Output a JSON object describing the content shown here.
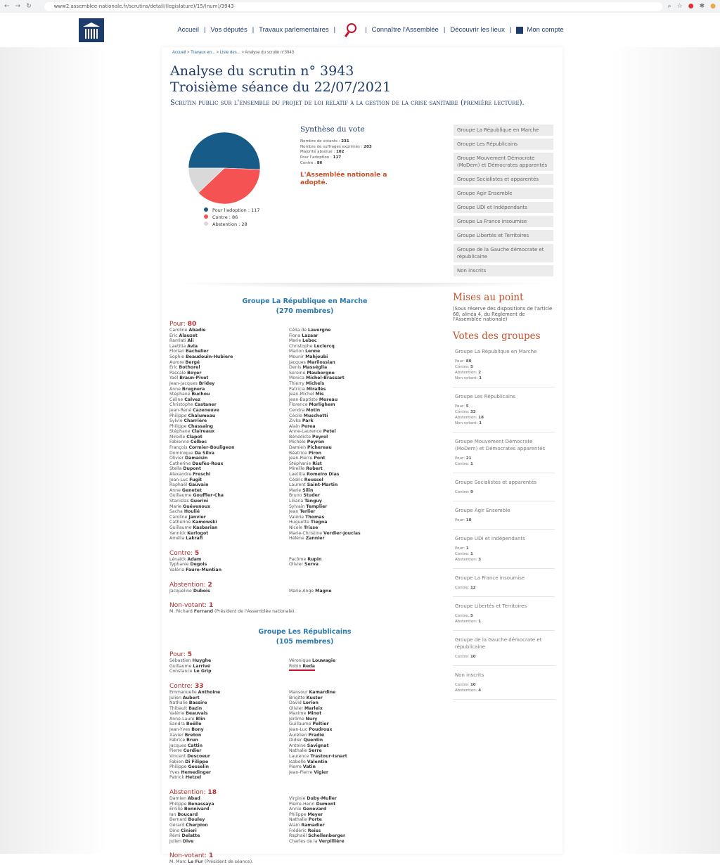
{
  "browser": {
    "url": "www2.assemblee-nationale.fr/scrutins/detail/(legislature)/15/(num)/3943"
  },
  "nav": {
    "items": [
      "Accueil",
      "Vos députés",
      "Travaux parlementaires",
      "Connaître l'Assemblée",
      "Découvrir les lieux",
      "Mon compte"
    ]
  },
  "breadcrumb": [
    "Accueil",
    "Travaux en...",
    "Liste des...",
    "Analyse du scrutin n°3943"
  ],
  "title": {
    "line1": "Analyse du scrutin n° 3943",
    "line2": "Troisième séance du 22/07/2021",
    "subtitle": "Scrutin public sur l'ensemble du projet de loi relatif à la gestion de la crise sanitaire (première lecture)."
  },
  "chart_data": {
    "type": "pie",
    "categories": [
      "Pour l'adoption",
      "Contre",
      "Abstention"
    ],
    "values": [
      117,
      86,
      28
    ],
    "colors": [
      "#175c89",
      "#f55353",
      "#d9d9d9"
    ],
    "legend": [
      "Pour l'adoption : 117",
      "Contre : 86",
      "Abstention : 28"
    ],
    "legend_position": "bottom"
  },
  "synthese": {
    "title": "Synthèse du vote",
    "rows": [
      [
        "Nombre de votants : ",
        "231"
      ],
      [
        "Nombre de suffrages exprimés : ",
        "203"
      ],
      [
        "Majorité absolue : ",
        "102"
      ],
      [
        "Pour l'adoption : ",
        "117"
      ],
      [
        "Contre : ",
        "86"
      ]
    ],
    "result": "L'Assemblée nationale a adopté."
  },
  "group_buttons": [
    "Groupe La République en Marche",
    "Groupe Les Républicains",
    "Groupe Mouvement Démocrate (MoDem) et Démocrates apparentés",
    "Groupe Socialistes et apparentés",
    "Groupe Agir Ensemble",
    "Groupe UDI et Indépendants",
    "Groupe La France insoumise",
    "Groupe Libertés et Territoires",
    "Groupe de la Gauche démocrate et républicaine",
    "Non inscrits"
  ],
  "groups": [
    {
      "name": "Groupe La République en Marche",
      "members": "(270 membres)",
      "votes": [
        {
          "label": "Pour: ",
          "count": "80",
          "left": [
            [
              "Caroline",
              "Abadie"
            ],
            [
              "Éric",
              "Alauzet"
            ],
            [
              "Ramlati",
              "Ali"
            ],
            [
              "Laetitia",
              "Avia"
            ],
            [
              "Florian",
              "Bachelier"
            ],
            [
              "Sophie",
              "Beaudouin-Hubiere"
            ],
            [
              "Aurore",
              "Bergé"
            ],
            [
              "Éric",
              "Bothorel"
            ],
            [
              "Pascale",
              "Boyer"
            ],
            [
              "Yaël",
              "Braun-Pivet"
            ],
            [
              "Jean-Jacques",
              "Bridey"
            ],
            [
              "Anne",
              "Brugnera"
            ],
            [
              "Stéphane",
              "Buchou"
            ],
            [
              "Céline",
              "Calvez"
            ],
            [
              "Christophe",
              "Castaner"
            ],
            [
              "Jean-René",
              "Cazeneuve"
            ],
            [
              "Philippe",
              "Chalumeau"
            ],
            [
              "Sylvie",
              "Charrière"
            ],
            [
              "Philippe",
              "Chassaing"
            ],
            [
              "Stéphane",
              "Claireaux"
            ],
            [
              "Mireille",
              "Clapot"
            ],
            [
              "Fabienne",
              "Colboc"
            ],
            [
              "François",
              "Cormier-Bouligeon"
            ],
            [
              "Dominique",
              "Da Silva"
            ],
            [
              "Olivier",
              "Damaisin"
            ],
            [
              "Catherine",
              "Daufès-Roux"
            ],
            [
              "Stella",
              "Dupont"
            ],
            [
              "Alexandre",
              "Freschi"
            ],
            [
              "Jean-Luc",
              "Fugit"
            ],
            [
              "Raphaël",
              "Gauvain"
            ],
            [
              "Anne",
              "Genetet"
            ],
            [
              "Guillaume",
              "Gouffier-Cha"
            ],
            [
              "Stanislas",
              "Guerini"
            ],
            [
              "Marie",
              "Guévenoux"
            ],
            [
              "Sacha",
              "Houlié"
            ],
            [
              "Caroline",
              "Janvier"
            ],
            [
              "Catherine",
              "Kamowski"
            ],
            [
              "Guillaume",
              "Kasbarian"
            ],
            [
              "Yannick",
              "Kerlogot"
            ],
            [
              "Amélia",
              "Lakrafi"
            ]
          ],
          "right": [
            [
              "Célia de",
              "Lavergne"
            ],
            [
              "Fiona",
              "Lazaar"
            ],
            [
              "Marie",
              "Lebec"
            ],
            [
              "Christophe",
              "Leclercq"
            ],
            [
              "Marion",
              "Lenne"
            ],
            [
              "Mounir",
              "Mahjoubi"
            ],
            [
              "Jacques",
              "Marilossian"
            ],
            [
              "Denis",
              "Masséglia"
            ],
            [
              "Sereine",
              "Mauborgne"
            ],
            [
              "Monica",
              "Michel-Brassart"
            ],
            [
              "Thierry",
              "Michels"
            ],
            [
              "Patricia",
              "Mirallès"
            ],
            [
              "Jean-Michel",
              "Mis"
            ],
            [
              "Jean-Baptiste",
              "Moreau"
            ],
            [
              "Florence",
              "Morlighem"
            ],
            [
              "Cendra",
              "Motin"
            ],
            [
              "Cécile",
              "Muschotti"
            ],
            [
              "Zivka",
              "Park"
            ],
            [
              "Alain",
              "Perea"
            ],
            [
              "Anne-Laurence",
              "Petel"
            ],
            [
              "Bénédicte",
              "Peyrol"
            ],
            [
              "Michèle",
              "Peyron"
            ],
            [
              "Damien",
              "Pichereau"
            ],
            [
              "Béatrice",
              "Piron"
            ],
            [
              "Jean-Pierre",
              "Pont"
            ],
            [
              "Stéphanie",
              "Rist"
            ],
            [
              "Mireille",
              "Robert"
            ],
            [
              "Laetitia",
              "Romeiro Dias"
            ],
            [
              "Cédric",
              "Roussel"
            ],
            [
              "Laurent",
              "Saint-Martin"
            ],
            [
              "Marie",
              "Silin"
            ],
            [
              "Bruno",
              "Studer"
            ],
            [
              "Liliana",
              "Tanguy"
            ],
            [
              "Sylvain",
              "Templier"
            ],
            [
              "Jean",
              "Terlier"
            ],
            [
              "Valérie",
              "Thomas"
            ],
            [
              "Huguette",
              "Tiegna"
            ],
            [
              "Nicole",
              "Trisse"
            ],
            [
              "Marie-Christine",
              "Verdier-Jouclas"
            ],
            [
              "Hélène",
              "Zannier"
            ]
          ]
        },
        {
          "label": "Contre: ",
          "count": "5",
          "left": [
            [
              "Lénaïck",
              "Adam"
            ],
            [
              "Typhanie",
              "Degois"
            ],
            [
              "Valéria",
              "Faure-Muntian"
            ]
          ],
          "right": [
            [
              "Pacôme",
              "Rupin"
            ],
            [
              "Olivier",
              "Serva"
            ]
          ]
        },
        {
          "label": "Abstention: ",
          "count": "2",
          "left": [
            [
              "Jacqueline",
              "Dubois"
            ]
          ],
          "right": [
            [
              "Marie-Ange",
              "Magne"
            ]
          ]
        },
        {
          "label": "Non-votant: ",
          "count": "1",
          "note": [
            "M. Richard",
            "Ferrand",
            "(Président de l'Assemblée nationale)."
          ]
        }
      ]
    },
    {
      "name": "Groupe Les Républicains",
      "members": "(105 membres)",
      "votes": [
        {
          "label": "Pour: ",
          "count": "5",
          "left": [
            [
              "Sébastien",
              "Huyghe"
            ],
            [
              "Guillaume",
              "Larrivé"
            ],
            [
              "Constance",
              "Le Grip"
            ]
          ],
          "right": [
            [
              "Véronique",
              "Louwagie"
            ],
            [
              "Robin",
              "Reda"
            ]
          ]
        },
        {
          "label": "Contre: ",
          "count": "33",
          "left": [
            [
              "Emmanuelle",
              "Anthoine"
            ],
            [
              "Julien",
              "Aubert"
            ],
            [
              "Nathalie",
              "Bassire"
            ],
            [
              "Thibault",
              "Bazin"
            ],
            [
              "Valérie",
              "Beauvais"
            ],
            [
              "Anne-Laure",
              "Blin"
            ],
            [
              "Sandra",
              "Boëlle"
            ],
            [
              "Jean-Yves",
              "Bony"
            ],
            [
              "Xavier",
              "Breton"
            ],
            [
              "Fabrice",
              "Brun"
            ],
            [
              "Jacques",
              "Cattin"
            ],
            [
              "Pierre",
              "Cordier"
            ],
            [
              "Vincent",
              "Descoeur"
            ],
            [
              "Fabien",
              "Di Filippo"
            ],
            [
              "Philippe",
              "Gosselin"
            ],
            [
              "Yves",
              "Hemedinger"
            ],
            [
              "Patrick",
              "Hetzel"
            ]
          ],
          "right": [
            [
              "Mansour",
              "Kamardine"
            ],
            [
              "Brigitte",
              "Kuster"
            ],
            [
              "David",
              "Lorion"
            ],
            [
              "Olivier",
              "Marleix"
            ],
            [
              "Maxime",
              "Minot"
            ],
            [
              "Jérôme",
              "Nury"
            ],
            [
              "Guillaume",
              "Peltier"
            ],
            [
              "Jean-Luc",
              "Poudroux"
            ],
            [
              "Aurélien",
              "Pradié"
            ],
            [
              "Didier",
              "Quentin"
            ],
            [
              "Antoine",
              "Savignat"
            ],
            [
              "Nathalie",
              "Serre"
            ],
            [
              "Laurence",
              "Trastour-Isnart"
            ],
            [
              "Isabelle",
              "Valentin"
            ],
            [
              "Pierre",
              "Vatin"
            ],
            [
              "Jean-Pierre",
              "Vigier"
            ]
          ]
        },
        {
          "label": "Abstention: ",
          "count": "18",
          "left": [
            [
              "Damien",
              "Abad"
            ],
            [
              "Philippe",
              "Benassaya"
            ],
            [
              "Émilie",
              "Bonnivard"
            ],
            [
              "Ian",
              "Boucard"
            ],
            [
              "Bernard",
              "Bouley"
            ],
            [
              "Gérard",
              "Cherpion"
            ],
            [
              "Dino",
              "Cinieri"
            ],
            [
              "Rémi",
              "Delatte"
            ],
            [
              "Julien",
              "Dive"
            ]
          ],
          "right": [
            [
              "Virginie",
              "Duby-Muller"
            ],
            [
              "Pierre-Henri",
              "Dumont"
            ],
            [
              "Annie",
              "Genevard"
            ],
            [
              "Philippe",
              "Meyer"
            ],
            [
              "Nathalie",
              "Porte"
            ],
            [
              "Alain",
              "Ramadier"
            ],
            [
              "Frédéric",
              "Reiss"
            ],
            [
              "Raphaël",
              "Schellenberger"
            ],
            [
              "Charles de la",
              "Verpillière"
            ]
          ]
        },
        {
          "label": "Non-votant: ",
          "count": "1",
          "note": [
            "M. Marc",
            "Le Fur",
            "(Président de séance)."
          ]
        }
      ]
    }
  ],
  "sidebar": {
    "mises_title": "Mises au point",
    "mises_text": "(Sous réserve des dispositions de l'article 68, alinéa 4, du Règlement de l'Assemblée nationale)",
    "votes_title": "Votes des groupes",
    "groups": [
      {
        "name": "Groupe La République en Marche",
        "stats": [
          [
            "Pour: ",
            "80"
          ],
          [
            "Contre: ",
            "5"
          ],
          [
            "Abstention: ",
            "2"
          ],
          [
            "Non-votant: ",
            "1"
          ]
        ]
      },
      {
        "name": "Groupe Les Républicains",
        "stats": [
          [
            "Pour: ",
            "5"
          ],
          [
            "Contre: ",
            "33"
          ],
          [
            "Abstention: ",
            "18"
          ],
          [
            "Non-votant: ",
            "1"
          ]
        ]
      },
      {
        "name": "Groupe Mouvement Démocrate (MoDem) et Démocrates apparentés",
        "stats": [
          [
            "Pour: ",
            "21"
          ],
          [
            "Contre: ",
            "1"
          ]
        ]
      },
      {
        "name": "Groupe Socialistes et apparentés",
        "stats": [
          [
            "Contre: ",
            "9"
          ]
        ]
      },
      {
        "name": "Groupe Agir Ensemble",
        "stats": [
          [
            "Pour: ",
            "10"
          ]
        ]
      },
      {
        "name": "Groupe UDI et Indépendants",
        "stats": [
          [
            "Pour: ",
            "1"
          ],
          [
            "Contre: ",
            "1"
          ],
          [
            "Abstention: ",
            "3"
          ]
        ]
      },
      {
        "name": "Groupe La France insoumise",
        "stats": [
          [
            "Contre: ",
            "12"
          ]
        ]
      },
      {
        "name": "Groupe Libertés et Territoires",
        "stats": [
          [
            "Contre: ",
            "5"
          ],
          [
            "Abstention: ",
            "1"
          ]
        ]
      },
      {
        "name": "Groupe de la Gauche démocrate et républicaine",
        "stats": [
          [
            "Contre: ",
            "10"
          ]
        ]
      },
      {
        "name": "Non inscrits",
        "stats": [
          [
            "Contre: ",
            "10"
          ],
          [
            "Abstention: ",
            "4"
          ]
        ]
      }
    ]
  },
  "highlight": "Robin Reda"
}
